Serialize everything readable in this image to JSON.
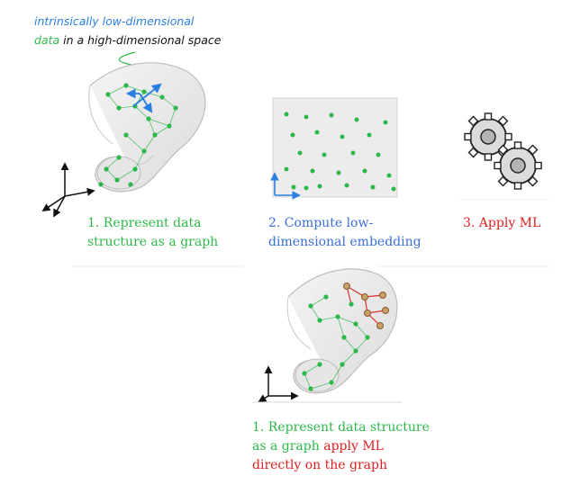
{
  "annotation": {
    "line1": "intrinsically low-dimensional",
    "line2_data": "data",
    "line2_rest": " in a high-dimensional space"
  },
  "steps": {
    "step1": {
      "line1": "1. Represent data",
      "line2": "structure as a graph"
    },
    "step2": {
      "line1": "2. Compute low-",
      "line2": "dimensional embedding"
    },
    "step3": {
      "line1": "3. Apply ML"
    },
    "bottom": {
      "line1": "1. Represent data structure",
      "line2_green": "as a graph",
      "line2_red": " apply ML",
      "line3": "directly on the graph"
    }
  },
  "colors": {
    "green": "#2db84a",
    "blue": "#3a6fd8",
    "red": "#e02020",
    "arrow_blue": "#2a7fe0",
    "node_brown": "#c7a06a"
  },
  "icons": [
    "gear-icon",
    "axes-icon",
    "manifold-surface"
  ]
}
